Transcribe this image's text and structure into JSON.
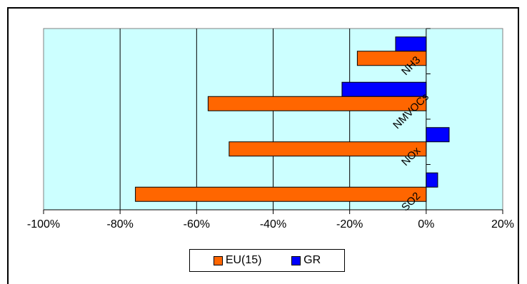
{
  "chart_data": {
    "type": "bar",
    "orientation": "horizontal",
    "categories": [
      "SO2",
      "NOx",
      "NMVOCs",
      "NH3"
    ],
    "series": [
      {
        "name": "EU(15)",
        "color": "#ff6600",
        "values": [
          -76,
          -51.5,
          -57,
          -18
        ]
      },
      {
        "name": "GR",
        "color": "#0000ff",
        "values": [
          3,
          6,
          -22,
          -8
        ]
      }
    ],
    "xlim": [
      -100,
      20
    ],
    "xticks": [
      -100,
      -80,
      -60,
      -40,
      -20,
      0,
      20
    ],
    "xtick_labels": [
      "-100%",
      "-80%",
      "-60%",
      "-40%",
      "-20%",
      "0%",
      "20%"
    ],
    "plot_background": "#ccffff",
    "grid": "vertical",
    "legend_position": "bottom"
  }
}
